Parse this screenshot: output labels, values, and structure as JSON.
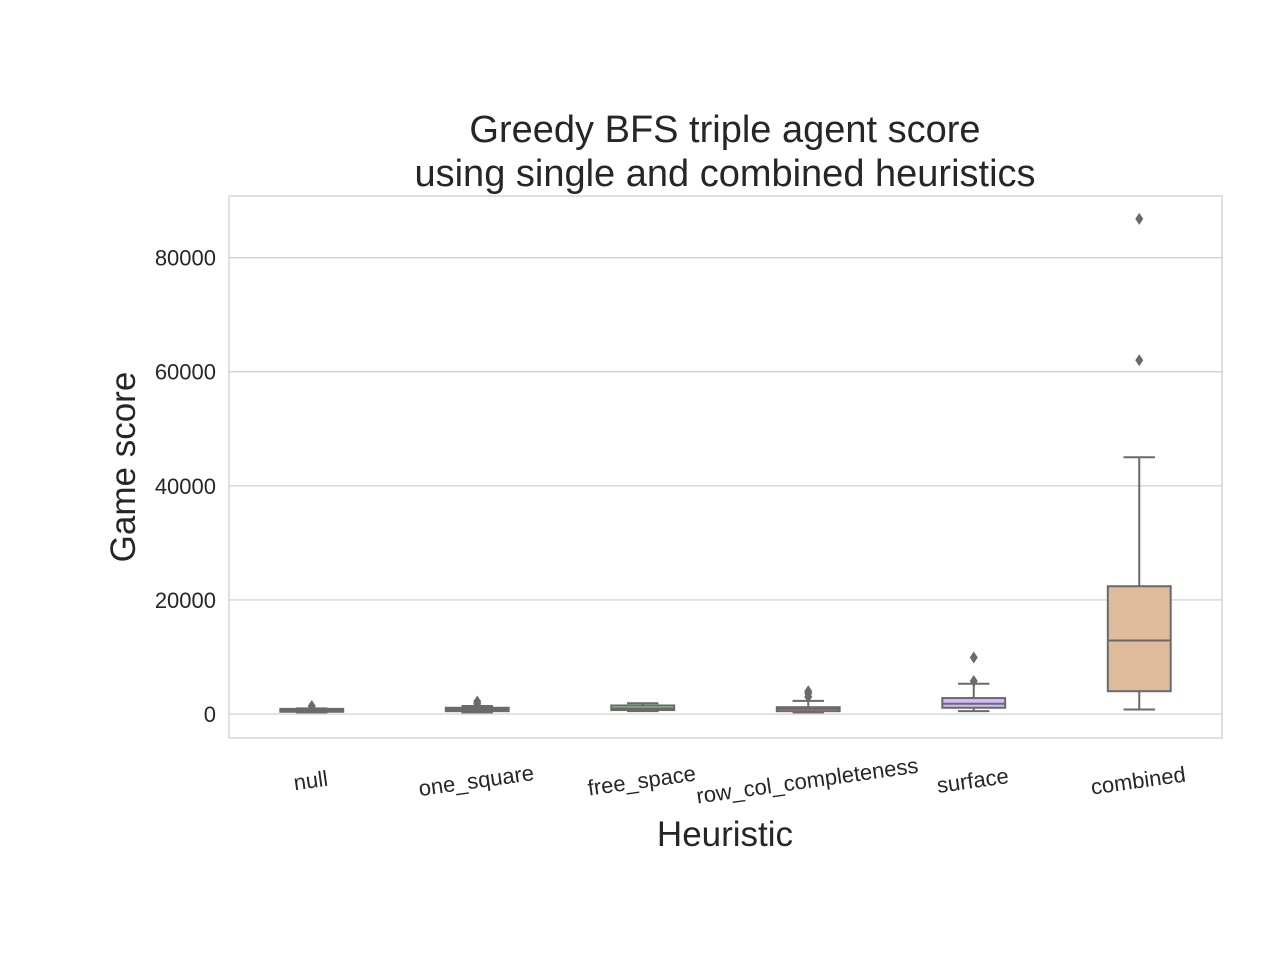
{
  "chart_data": {
    "type": "box",
    "title": [
      "Greedy BFS triple agent score",
      "using single and combined heuristics"
    ],
    "xlabel": "Heuristic",
    "ylabel": "Game score",
    "ylim": [
      -4200,
      90800
    ],
    "yticks": [
      0,
      20000,
      40000,
      60000,
      80000
    ],
    "ytick_labels": [
      "0",
      "20000",
      "40000",
      "60000",
      "80000"
    ],
    "grid": "horizontal",
    "categories": [
      "null",
      "one_square",
      "free_space",
      "row_col_completeness",
      "surface",
      "combined"
    ],
    "series": [
      {
        "category": "null",
        "color": "#a1c9f4",
        "whisker_low": 300,
        "q1": 400,
        "median": 700,
        "q3": 900,
        "whisker_high": 1000,
        "outliers": [
          1400
        ]
      },
      {
        "category": "one_square",
        "color": "#ffb482",
        "whisker_low": 300,
        "q1": 500,
        "median": 800,
        "q3": 1100,
        "whisker_high": 1400,
        "outliers": [
          1800,
          2200
        ]
      },
      {
        "category": "free_space",
        "color": "#8de5a1",
        "whisker_low": 500,
        "q1": 700,
        "median": 1000,
        "q3": 1500,
        "whisker_high": 1900,
        "outliers": []
      },
      {
        "category": "row_col_completeness",
        "color": "#ff9f9b",
        "whisker_low": 300,
        "q1": 500,
        "median": 900,
        "q3": 1200,
        "whisker_high": 2300,
        "outliers": [
          3000,
          3600,
          4000
        ]
      },
      {
        "category": "surface",
        "color": "#d0bbff",
        "whisker_low": 500,
        "q1": 1100,
        "median": 1800,
        "q3": 2800,
        "whisker_high": 5300,
        "outliers": [
          5800,
          9900
        ]
      },
      {
        "category": "combined",
        "color": "#debb9b",
        "whisker_low": 800,
        "q1": 4000,
        "median": 12900,
        "q3": 22400,
        "whisker_high": 45000,
        "outliers": [
          62000,
          86800
        ]
      }
    ]
  }
}
